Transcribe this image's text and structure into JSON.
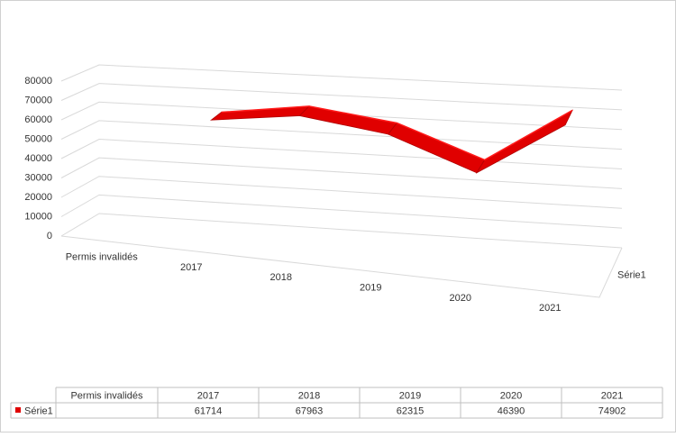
{
  "chart_data": {
    "type": "line3d",
    "categories": [
      "Permis invalidés",
      "2017",
      "2018",
      "2019",
      "2020",
      "2021"
    ],
    "series": [
      {
        "name": "Série1",
        "color": "#e00000",
        "values": [
          null,
          61714,
          67963,
          62315,
          46390,
          74902
        ]
      }
    ],
    "ylim": [
      0,
      80000
    ],
    "yticks": [
      0,
      10000,
      20000,
      30000,
      40000,
      50000,
      60000,
      70000,
      80000
    ],
    "grid": true,
    "data_table": true
  }
}
